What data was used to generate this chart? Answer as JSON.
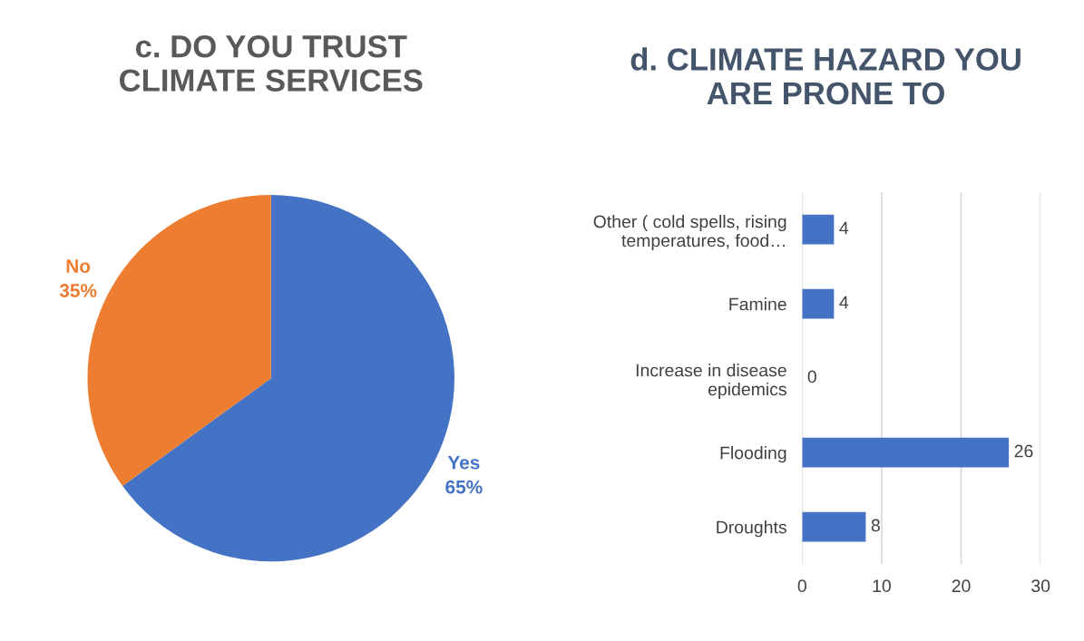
{
  "chart_data": [
    {
      "type": "pie",
      "title": "c. DO YOU TRUST\nCLIMATE SERVICES",
      "categories": [
        "Yes",
        "No"
      ],
      "values": [
        65,
        35
      ],
      "colors": [
        "#4472c4",
        "#ed7d31"
      ],
      "value_labels": [
        "65%",
        "35%"
      ],
      "legend": false
    },
    {
      "type": "bar",
      "orientation": "horizontal",
      "title": "d. CLIMATE HAZARD YOU\nARE PRONE TO",
      "categories": [
        "Other ( cold spells, rising\ntemperatures, food…",
        "Famine",
        "Increase in disease\nepidemics",
        "Flooding",
        "Droughts"
      ],
      "values": [
        4,
        4,
        0,
        26,
        8
      ],
      "color": "#4472c4",
      "data_labels": true,
      "xlim": [
        0,
        30
      ],
      "xticks": [
        0,
        10,
        20,
        30
      ],
      "grid": "x",
      "legend": false
    }
  ]
}
